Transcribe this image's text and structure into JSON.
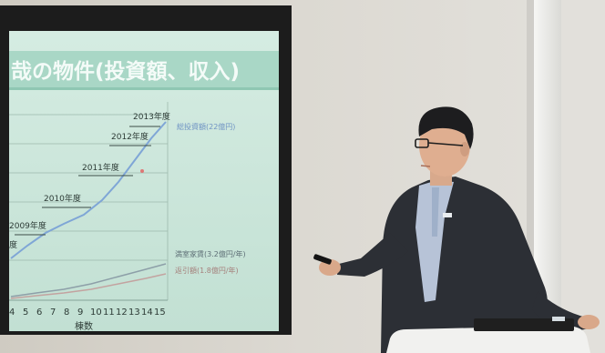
{
  "slide": {
    "title": "哉の物件(投資額、収入)",
    "year_labels": [
      "2013年度",
      "2012年度",
      "2011年度",
      "2010年度",
      "2009年度",
      "度"
    ],
    "series_labels": {
      "total_investment": "総投資額(22億円)",
      "annual_rent": "満室家賃(3.2億円/年)",
      "annual_repayment": "返引額(1.8億円/年)"
    },
    "x_ticks": [
      "4",
      "5",
      "6",
      "7",
      "8",
      "9",
      "10",
      "11",
      "12",
      "13",
      "14",
      "15"
    ],
    "x_axis_label": "棟数"
  },
  "colors": {
    "slide_background": "#cfe7dc",
    "title_bar": "#a9d7c6",
    "investment_line": "#7fa6d6",
    "rent_line": "#8d9fa8",
    "repayment_line": "#c3a3a0",
    "wall": "#d7d4cc"
  }
}
